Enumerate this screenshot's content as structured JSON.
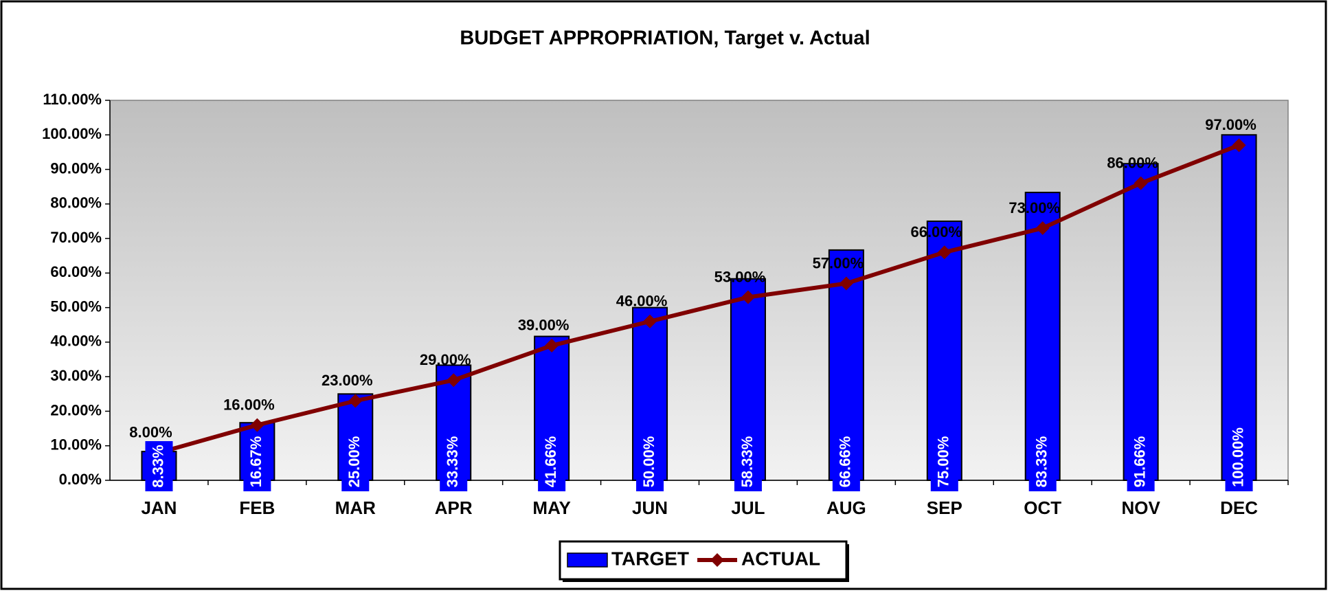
{
  "chart_data": {
    "type": "bar",
    "title": "BUDGET APPROPRIATION, Target v. Actual",
    "categories": [
      "JAN",
      "FEB",
      "MAR",
      "APR",
      "MAY",
      "JUN",
      "JUL",
      "AUG",
      "SEP",
      "OCT",
      "NOV",
      "DEC"
    ],
    "series": [
      {
        "name": "TARGET",
        "type": "bar",
        "color": "#0000ff",
        "values": [
          8.33,
          16.67,
          25,
          33.33,
          41.66,
          50,
          58.33,
          66.66,
          75,
          83.33,
          91.66,
          100
        ],
        "value_labels": [
          "8.33%",
          "16.67%",
          "25.00%",
          "33.33%",
          "41.66%",
          "50.00%",
          "58.33%",
          "66.66%",
          "75.00%",
          "83.33%",
          "91.66%",
          "100.00%"
        ]
      },
      {
        "name": "ACTUAL",
        "type": "line",
        "color": "#800000",
        "values": [
          8,
          16,
          23,
          29,
          39,
          46,
          53,
          57,
          66,
          73,
          86,
          97
        ],
        "value_labels": [
          "8.00%",
          "16.00%",
          "23.00%",
          "29.00%",
          "39.00%",
          "46.00%",
          "53.00%",
          "57.00%",
          "66.00%",
          "73.00%",
          "86.00%",
          "97.00%"
        ]
      }
    ],
    "ylim": [
      0,
      110
    ],
    "yticks": [
      {
        "value": 0,
        "label": "0.00%"
      },
      {
        "value": 10,
        "label": "10.00%"
      },
      {
        "value": 20,
        "label": "20.00%"
      },
      {
        "value": 30,
        "label": "30.00%"
      },
      {
        "value": 40,
        "label": "40.00%"
      },
      {
        "value": 50,
        "label": "50.00%"
      },
      {
        "value": 60,
        "label": "60.00%"
      },
      {
        "value": 70,
        "label": "70.00%"
      },
      {
        "value": 80,
        "label": "80.00%"
      },
      {
        "value": 90,
        "label": "90.00%"
      },
      {
        "value": 100,
        "label": "100.00%"
      },
      {
        "value": 110,
        "label": "110.00%"
      }
    ],
    "legend": "bottom"
  }
}
